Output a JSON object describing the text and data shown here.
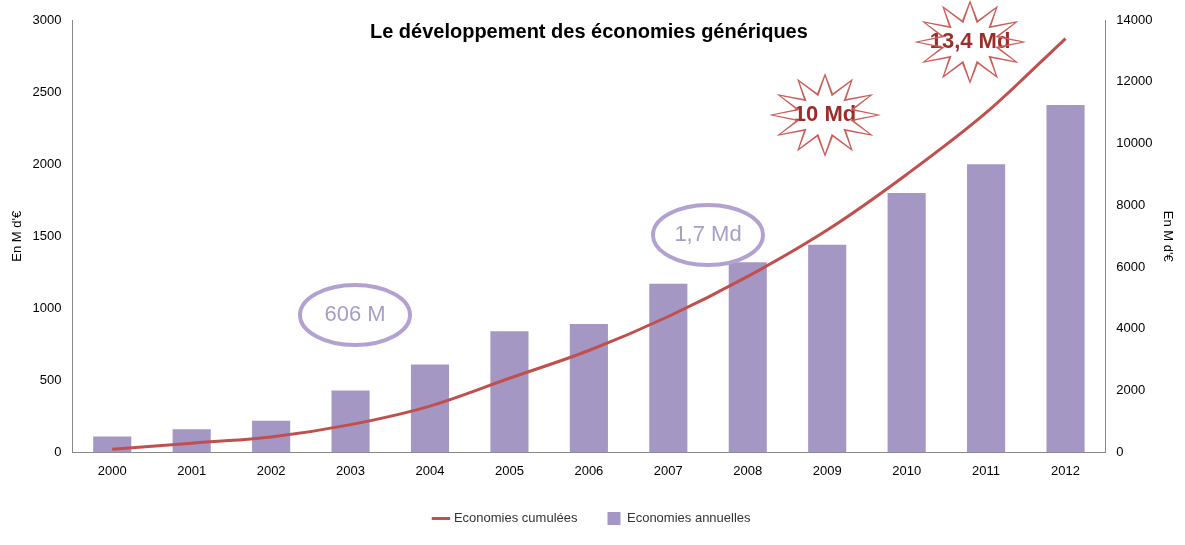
{
  "chart_data": {
    "type": "bar",
    "title": "Le développement des économies génériques",
    "ylabel": "En M d'€",
    "y2label": "En M d'€",
    "categories": [
      "2000",
      "2001",
      "2002",
      "2003",
      "2004",
      "2005",
      "2006",
      "2007",
      "2008",
      "2009",
      "2010",
      "2011",
      "2012"
    ],
    "series": [
      {
        "name": "Economies annuelles",
        "color": "#a597c4",
        "values": [
          110,
          160,
          220,
          430,
          610,
          840,
          890,
          1170,
          1320,
          1440,
          1800,
          2000,
          2410
        ]
      },
      {
        "name": "Economies cumulées",
        "type": "line",
        "axis": "y2",
        "color": "#c0504d",
        "values": [
          100,
          300,
          500,
          900,
          1500,
          2400,
          3300,
          4400,
          5700,
          7200,
          9000,
          11000,
          13400
        ]
      }
    ],
    "ylim": [
      0,
      3000
    ],
    "yticks": [
      0,
      500,
      1000,
      1500,
      2000,
      2500,
      3000
    ],
    "y2lim": [
      0,
      14000
    ],
    "y2ticks": [
      0,
      2000,
      4000,
      6000,
      8000,
      10000,
      12000,
      14000
    ],
    "annotations": [
      "606 M",
      "1,7 Md",
      "10 Md",
      "13,4 Md"
    ],
    "grid": false,
    "legend": "bottom",
    "marker": "none",
    "line_style": "solid"
  }
}
